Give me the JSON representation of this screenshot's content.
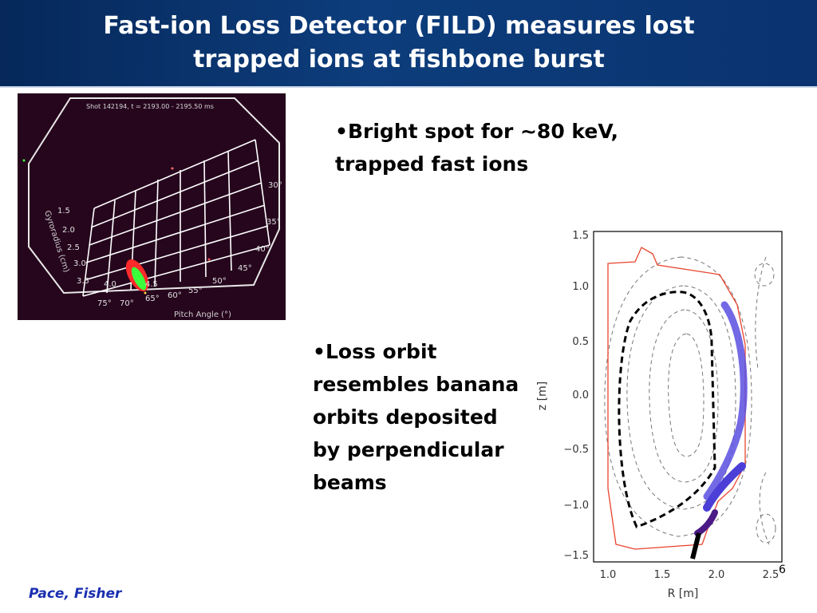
{
  "slide": {
    "title_line1": "Fast-ion Loss Detector (FILD) measures lost",
    "title_line2": "trapped ions at fishbone burst",
    "footer": "Pace, Fisher",
    "page_number": "6",
    "accent_color": "#0d3d7c",
    "footer_color": "#1a2fb0"
  },
  "bullets": [
    {
      "text": "•Bright spot for ~80 keV, trapped fast ions"
    },
    {
      "text": "•Loss orbit resembles banana orbits deposited by perpendicular beams"
    }
  ],
  "fild_image": {
    "header": "Shot 142194, t = 2193.00 - 2195.50 ms",
    "gyroradius_label": "Gyroradius (cm)",
    "pitch_label": "Pitch Angle (°)",
    "gyroradius_ticks": [
      "1.5",
      "2.0",
      "2.5",
      "3.0",
      "3.5",
      "4.0"
    ],
    "pitch_ticks": [
      "75°",
      "70°",
      "65°",
      "60°",
      "55°",
      "50°",
      "45°",
      "40°",
      "35°",
      "30°"
    ],
    "extra_tick": "4.5"
  },
  "orbit_plot": {
    "xlabel": "R [m]",
    "ylabel": "z [m]",
    "x_ticks": [
      "1.0",
      "1.5",
      "2.0",
      "2.5"
    ],
    "y_ticks": [
      "1.5",
      "1.0",
      "0.5",
      "0.0",
      "−0.5",
      "−1.0",
      "−1.5"
    ]
  }
}
